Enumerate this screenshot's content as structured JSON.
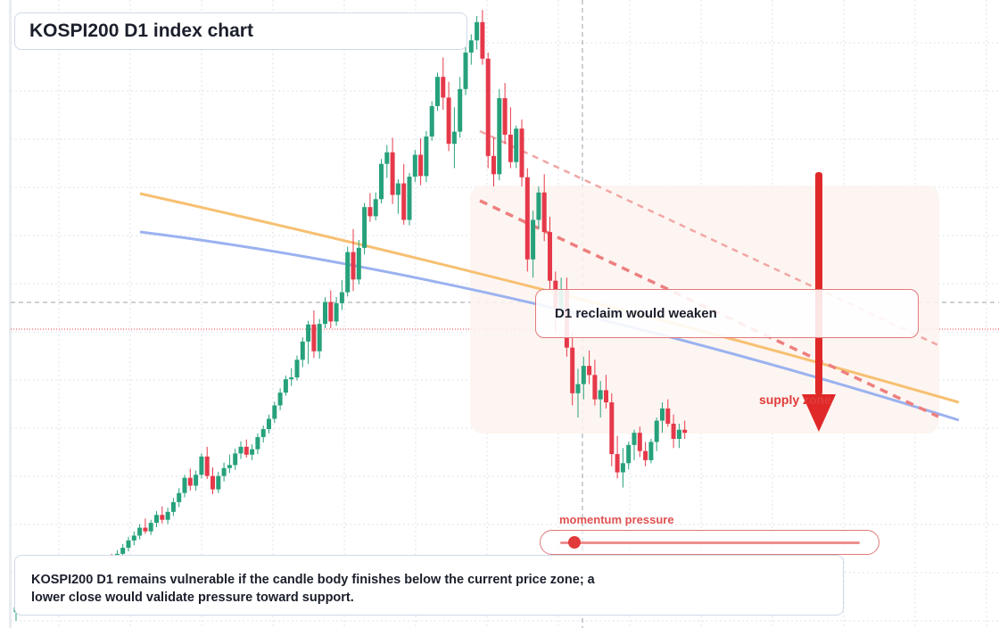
{
  "title": "KOSPI200 D1 index chart",
  "callout": {
    "text": "D1 reclaim would weaken"
  },
  "supply_zone": {
    "label": "supply zone"
  },
  "momentum": {
    "label": "momentum pressure",
    "level": 0.04
  },
  "note": {
    "line1": "KOSPI200 D1 remains vulnerable if the candle body finishes below the current price zone; a",
    "line2": "lower close would validate pressure toward support."
  },
  "colors": {
    "bull": "#26a17b",
    "bear": "#e5394a",
    "ma_fast": "#f7c072",
    "ma_slow": "#9bb2f0",
    "trend": "#ee7f7f",
    "arrow": "#e02828",
    "zone": "#fdf3ee",
    "grid": "#dfe3ea"
  },
  "chart_data": {
    "type": "candlestick",
    "title": "KOSPI200 D1 index chart",
    "xlabel": "",
    "ylabel": "",
    "ylim": [
      0,
      100
    ],
    "grid": true,
    "legend": "none",
    "candles": [
      {
        "o": 2.0,
        "h": 3.2,
        "l": 0.6,
        "c": 2.8
      },
      {
        "o": 2.8,
        "h": 4.0,
        "l": 2.1,
        "c": 3.6
      },
      {
        "o": 3.6,
        "h": 4.4,
        "l": 2.6,
        "c": 3.0
      },
      {
        "o": 3.0,
        "h": 4.2,
        "l": 2.4,
        "c": 3.9
      },
      {
        "o": 3.9,
        "h": 5.6,
        "l": 3.4,
        "c": 5.1
      },
      {
        "o": 5.1,
        "h": 5.8,
        "l": 3.9,
        "c": 4.3
      },
      {
        "o": 4.3,
        "h": 5.0,
        "l": 3.0,
        "c": 3.5
      },
      {
        "o": 3.5,
        "h": 4.9,
        "l": 2.9,
        "c": 4.6
      },
      {
        "o": 4.6,
        "h": 5.4,
        "l": 3.3,
        "c": 3.8
      },
      {
        "o": 3.8,
        "h": 4.8,
        "l": 2.7,
        "c": 3.1
      },
      {
        "o": 3.1,
        "h": 4.7,
        "l": 2.5,
        "c": 4.2
      },
      {
        "o": 4.2,
        "h": 5.9,
        "l": 3.7,
        "c": 5.4
      },
      {
        "o": 5.4,
        "h": 7.0,
        "l": 4.9,
        "c": 6.6
      },
      {
        "o": 6.6,
        "h": 7.8,
        "l": 5.8,
        "c": 7.3
      },
      {
        "o": 7.3,
        "h": 8.6,
        "l": 6.6,
        "c": 8.0
      },
      {
        "o": 8.0,
        "h": 9.5,
        "l": 7.3,
        "c": 9.0
      },
      {
        "o": 9.0,
        "h": 11.0,
        "l": 8.3,
        "c": 10.3
      },
      {
        "o": 10.3,
        "h": 11.6,
        "l": 9.1,
        "c": 10.0
      },
      {
        "o": 10.0,
        "h": 12.2,
        "l": 9.5,
        "c": 11.6
      },
      {
        "o": 11.6,
        "h": 13.2,
        "l": 10.9,
        "c": 12.6
      },
      {
        "o": 12.6,
        "h": 14.4,
        "l": 12.0,
        "c": 13.8
      },
      {
        "o": 13.8,
        "h": 15.3,
        "l": 13.0,
        "c": 14.6
      },
      {
        "o": 14.6,
        "h": 16.5,
        "l": 14.0,
        "c": 15.9
      },
      {
        "o": 15.9,
        "h": 17.4,
        "l": 14.9,
        "c": 15.3
      },
      {
        "o": 15.3,
        "h": 17.2,
        "l": 14.7,
        "c": 16.7
      },
      {
        "o": 16.7,
        "h": 18.6,
        "l": 16.0,
        "c": 18.0
      },
      {
        "o": 18.0,
        "h": 19.4,
        "l": 16.6,
        "c": 17.2
      },
      {
        "o": 17.2,
        "h": 19.2,
        "l": 16.5,
        "c": 18.5
      },
      {
        "o": 18.5,
        "h": 20.8,
        "l": 17.8,
        "c": 20.1
      },
      {
        "o": 20.1,
        "h": 22.4,
        "l": 19.3,
        "c": 21.6
      },
      {
        "o": 21.6,
        "h": 24.6,
        "l": 20.9,
        "c": 24.1
      },
      {
        "o": 24.1,
        "h": 25.6,
        "l": 22.0,
        "c": 22.8
      },
      {
        "o": 22.8,
        "h": 25.3,
        "l": 22.0,
        "c": 24.6
      },
      {
        "o": 24.6,
        "h": 28.1,
        "l": 24.0,
        "c": 27.6
      },
      {
        "o": 27.6,
        "h": 29.2,
        "l": 23.9,
        "c": 24.4
      },
      {
        "o": 24.4,
        "h": 25.8,
        "l": 21.4,
        "c": 22.2
      },
      {
        "o": 22.2,
        "h": 25.1,
        "l": 21.6,
        "c": 24.4
      },
      {
        "o": 24.4,
        "h": 26.6,
        "l": 23.5,
        "c": 25.7
      },
      {
        "o": 25.7,
        "h": 27.9,
        "l": 24.9,
        "c": 26.2
      },
      {
        "o": 26.2,
        "h": 28.9,
        "l": 25.4,
        "c": 28.1
      },
      {
        "o": 28.1,
        "h": 30.1,
        "l": 27.2,
        "c": 29.2
      },
      {
        "o": 29.2,
        "h": 30.4,
        "l": 27.4,
        "c": 27.9
      },
      {
        "o": 27.9,
        "h": 29.6,
        "l": 27.0,
        "c": 28.8
      },
      {
        "o": 28.8,
        "h": 31.4,
        "l": 28.0,
        "c": 30.8
      },
      {
        "o": 30.8,
        "h": 32.7,
        "l": 29.9,
        "c": 32.1
      },
      {
        "o": 32.1,
        "h": 34.5,
        "l": 31.4,
        "c": 33.8
      },
      {
        "o": 33.8,
        "h": 36.6,
        "l": 33.1,
        "c": 36.0
      },
      {
        "o": 36.0,
        "h": 38.8,
        "l": 35.2,
        "c": 38.1
      },
      {
        "o": 38.1,
        "h": 40.9,
        "l": 37.6,
        "c": 40.3
      },
      {
        "o": 40.3,
        "h": 42.1,
        "l": 39.2,
        "c": 40.6
      },
      {
        "o": 40.6,
        "h": 44.2,
        "l": 40.1,
        "c": 43.5
      },
      {
        "o": 43.5,
        "h": 47.2,
        "l": 42.3,
        "c": 46.5
      },
      {
        "o": 46.5,
        "h": 49.9,
        "l": 42.8,
        "c": 49.3
      },
      {
        "o": 49.3,
        "h": 51.6,
        "l": 43.8,
        "c": 44.9
      },
      {
        "o": 44.9,
        "h": 50.2,
        "l": 43.7,
        "c": 49.4
      },
      {
        "o": 49.4,
        "h": 53.8,
        "l": 48.7,
        "c": 53.0
      },
      {
        "o": 53.0,
        "h": 54.9,
        "l": 48.7,
        "c": 49.8
      },
      {
        "o": 49.8,
        "h": 53.8,
        "l": 49.1,
        "c": 52.8
      },
      {
        "o": 52.8,
        "h": 56.6,
        "l": 51.7,
        "c": 54.6
      },
      {
        "o": 54.6,
        "h": 62.1,
        "l": 53.9,
        "c": 61.2
      },
      {
        "o": 61.2,
        "h": 65.0,
        "l": 54.8,
        "c": 56.7
      },
      {
        "o": 56.7,
        "h": 63.2,
        "l": 55.9,
        "c": 61.9
      },
      {
        "o": 61.9,
        "h": 69.3,
        "l": 60.8,
        "c": 68.6
      },
      {
        "o": 68.6,
        "h": 70.9,
        "l": 66.2,
        "c": 67.1
      },
      {
        "o": 67.1,
        "h": 71.0,
        "l": 66.4,
        "c": 69.9
      },
      {
        "o": 69.9,
        "h": 76.5,
        "l": 69.2,
        "c": 75.7
      },
      {
        "o": 75.7,
        "h": 78.8,
        "l": 73.4,
        "c": 77.6
      },
      {
        "o": 77.6,
        "h": 80.0,
        "l": 69.1,
        "c": 70.6
      },
      {
        "o": 70.6,
        "h": 73.2,
        "l": 67.5,
        "c": 72.5
      },
      {
        "o": 72.5,
        "h": 75.7,
        "l": 65.7,
        "c": 66.5
      },
      {
        "o": 66.5,
        "h": 74.2,
        "l": 65.6,
        "c": 73.6
      },
      {
        "o": 73.6,
        "h": 78.0,
        "l": 72.7,
        "c": 77.2
      },
      {
        "o": 77.2,
        "h": 79.9,
        "l": 72.2,
        "c": 73.7
      },
      {
        "o": 73.7,
        "h": 81.1,
        "l": 72.7,
        "c": 80.2
      },
      {
        "o": 80.2,
        "h": 86.0,
        "l": 79.5,
        "c": 85.2
      },
      {
        "o": 85.2,
        "h": 90.7,
        "l": 84.4,
        "c": 90.0
      },
      {
        "o": 90.0,
        "h": 93.2,
        "l": 84.6,
        "c": 86.6
      },
      {
        "o": 86.6,
        "h": 89.2,
        "l": 77.8,
        "c": 79.0
      },
      {
        "o": 79.0,
        "h": 85.0,
        "l": 75.0,
        "c": 81.0
      },
      {
        "o": 81.0,
        "h": 90.0,
        "l": 80.0,
        "c": 88.0
      },
      {
        "o": 88.0,
        "h": 95.0,
        "l": 87.0,
        "c": 94.0
      },
      {
        "o": 94.0,
        "h": 97.0,
        "l": 92.0,
        "c": 96.0
      },
      {
        "o": 96.0,
        "h": 100.0,
        "l": 94.5,
        "c": 99.0
      },
      {
        "o": 99.0,
        "h": 101.0,
        "l": 92.0,
        "c": 93.0
      },
      {
        "o": 93.0,
        "h": 94.0,
        "l": 75.0,
        "c": 77.0
      },
      {
        "o": 77.0,
        "h": 80.0,
        "l": 72.0,
        "c": 74.0
      },
      {
        "o": 74.0,
        "h": 88.0,
        "l": 73.0,
        "c": 86.5
      },
      {
        "o": 86.5,
        "h": 89.0,
        "l": 79.0,
        "c": 80.5
      },
      {
        "o": 80.5,
        "h": 85.0,
        "l": 75.0,
        "c": 76.0
      },
      {
        "o": 76.0,
        "h": 82.0,
        "l": 75.0,
        "c": 81.5
      },
      {
        "o": 81.5,
        "h": 83.0,
        "l": 72.0,
        "c": 73.5
      },
      {
        "o": 73.5,
        "h": 75.0,
        "l": 58.0,
        "c": 60.0
      },
      {
        "o": 60.0,
        "h": 68.0,
        "l": 57.0,
        "c": 66.5
      },
      {
        "o": 66.5,
        "h": 72.0,
        "l": 65.0,
        "c": 71.0
      },
      {
        "o": 71.0,
        "h": 74.0,
        "l": 63.0,
        "c": 64.5
      },
      {
        "o": 64.5,
        "h": 67.0,
        "l": 55.0,
        "c": 56.5
      },
      {
        "o": 56.5,
        "h": 58.0,
        "l": 48.0,
        "c": 52.0
      },
      {
        "o": 52.0,
        "h": 57.0,
        "l": 50.5,
        "c": 55.0
      },
      {
        "o": 55.0,
        "h": 57.0,
        "l": 44.0,
        "c": 45.5
      },
      {
        "o": 45.5,
        "h": 48.0,
        "l": 36.0,
        "c": 38.0
      },
      {
        "o": 38.0,
        "h": 42.0,
        "l": 34.0,
        "c": 39.5
      },
      {
        "o": 39.5,
        "h": 44.0,
        "l": 37.0,
        "c": 42.5
      },
      {
        "o": 42.5,
        "h": 45.0,
        "l": 39.5,
        "c": 41.0
      },
      {
        "o": 41.0,
        "h": 43.5,
        "l": 36.0,
        "c": 37.0
      },
      {
        "o": 37.0,
        "h": 40.0,
        "l": 34.0,
        "c": 38.5
      },
      {
        "o": 38.5,
        "h": 41.0,
        "l": 35.5,
        "c": 36.5
      },
      {
        "o": 36.5,
        "h": 38.0,
        "l": 26.0,
        "c": 28.0
      },
      {
        "o": 28.0,
        "h": 31.0,
        "l": 24.0,
        "c": 25.0
      },
      {
        "o": 25.0,
        "h": 29.0,
        "l": 22.5,
        "c": 26.5
      },
      {
        "o": 26.5,
        "h": 30.0,
        "l": 25.5,
        "c": 29.5
      },
      {
        "o": 29.5,
        "h": 32.0,
        "l": 27.0,
        "c": 31.5
      },
      {
        "o": 31.5,
        "h": 32.5,
        "l": 27.5,
        "c": 28.5
      },
      {
        "o": 28.5,
        "h": 30.0,
        "l": 26.0,
        "c": 27.0
      },
      {
        "o": 27.0,
        "h": 30.5,
        "l": 26.5,
        "c": 30.0
      },
      {
        "o": 30.0,
        "h": 34.0,
        "l": 28.5,
        "c": 33.5
      },
      {
        "o": 33.5,
        "h": 36.5,
        "l": 31.5,
        "c": 35.5
      },
      {
        "o": 35.5,
        "h": 37.0,
        "l": 32.5,
        "c": 33.0
      },
      {
        "o": 33.0,
        "h": 34.5,
        "l": 29.0,
        "c": 30.5
      },
      {
        "o": 30.5,
        "h": 33.0,
        "l": 29.0,
        "c": 32.0
      },
      {
        "o": 32.0,
        "h": 33.5,
        "l": 30.5,
        "c": 31.5
      }
    ],
    "overlays": {
      "moving_averages": [
        "ma_fast",
        "ma_slow"
      ],
      "trendlines": 2,
      "supply_zone": true
    }
  }
}
